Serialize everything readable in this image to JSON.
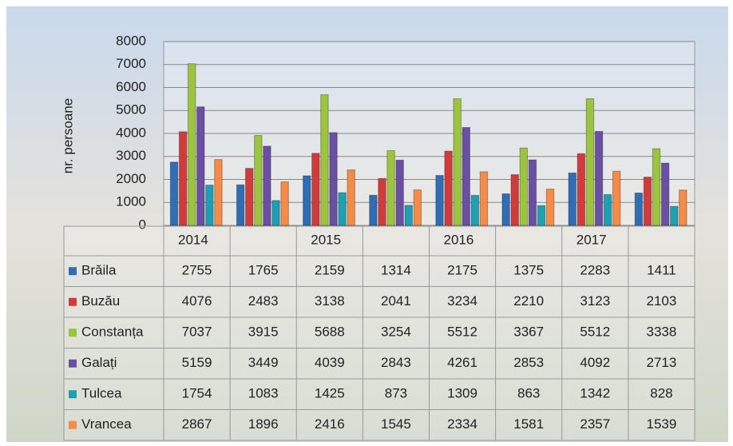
{
  "chart_data": {
    "type": "bar",
    "y_label": "nr. persoane",
    "categories": [
      "2014",
      null,
      "2015",
      null,
      "2016",
      null,
      "2017",
      null
    ],
    "series": [
      {
        "name": "Brăila",
        "color": "#2f6db5",
        "values": [
          2755,
          1765,
          2159,
          1314,
          2175,
          1375,
          2283,
          1411
        ]
      },
      {
        "name": "Buzău",
        "color": "#d33b3b",
        "values": [
          4076,
          2483,
          3138,
          2041,
          3234,
          2210,
          3123,
          2103
        ]
      },
      {
        "name": "Constanța",
        "color": "#9cc43e",
        "values": [
          7037,
          3915,
          5688,
          3254,
          5512,
          3367,
          5512,
          3338
        ]
      },
      {
        "name": "Galați",
        "color": "#6b4fa3",
        "values": [
          5159,
          3449,
          4039,
          2843,
          4261,
          2853,
          4092,
          2713
        ]
      },
      {
        "name": "Tulcea",
        "color": "#1d9fb4",
        "values": [
          1754,
          1083,
          1425,
          873,
          1309,
          863,
          1342,
          828
        ]
      },
      {
        "name": "Vrancea",
        "color": "#f58b46",
        "values": [
          2867,
          1896,
          2416,
          1545,
          2334,
          1581,
          2357,
          1539
        ]
      }
    ],
    "ylim": [
      0,
      8000
    ],
    "yticks": [
      0,
      1000,
      2000,
      3000,
      4000,
      5000,
      6000,
      7000,
      8000
    ],
    "grid": true
  }
}
